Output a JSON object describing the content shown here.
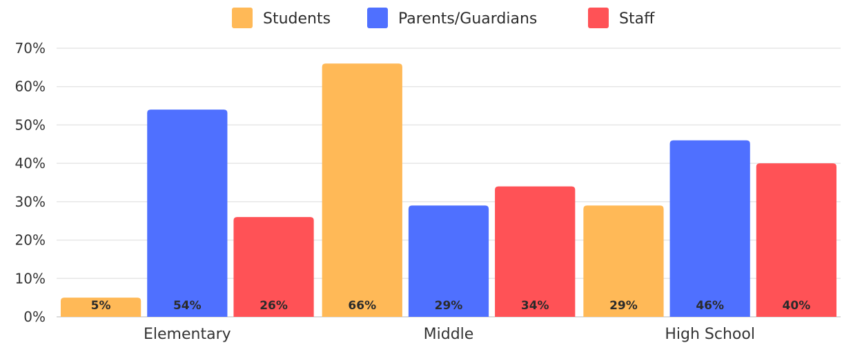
{
  "chart_data": {
    "type": "bar",
    "title": "",
    "xlabel": "",
    "ylabel": "",
    "categories": [
      "Elementary",
      "Middle",
      "High School"
    ],
    "series": [
      {
        "name": "Students",
        "color": "#FFB957",
        "values": [
          5,
          66,
          29
        ],
        "labels": [
          "5%",
          "66%",
          "29%"
        ]
      },
      {
        "name": "Parents/Guardians",
        "color": "#4F70FF",
        "values": [
          54,
          29,
          46
        ],
        "labels": [
          "54%",
          "29%",
          "46%"
        ]
      },
      {
        "name": "Staff",
        "color": "#FF5256",
        "values": [
          26,
          34,
          40
        ],
        "labels": [
          "26%",
          "34%",
          "40%"
        ]
      }
    ],
    "ylim": [
      0,
      70
    ],
    "yticks": [
      0,
      10,
      20,
      30,
      40,
      50,
      60,
      70
    ],
    "ytick_labels": [
      "0%",
      "10%",
      "20%",
      "30%",
      "40%",
      "50%",
      "60%",
      "70%"
    ],
    "grid": true,
    "legend_position": "top-center"
  }
}
